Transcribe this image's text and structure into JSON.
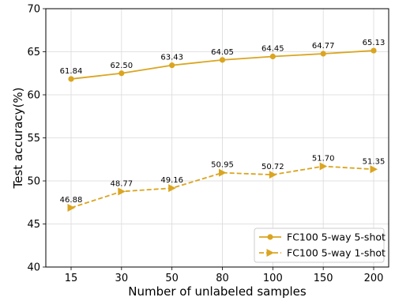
{
  "chart_data": {
    "type": "line",
    "xlabel": "Number of unlabeled samples",
    "ylabel": "Test accuracy(%)",
    "categories": [
      "15",
      "30",
      "50",
      "80",
      "100",
      "150",
      "200"
    ],
    "ylim": [
      40,
      70
    ],
    "yticks": [
      "40",
      "45",
      "50",
      "55",
      "60",
      "65",
      "70"
    ],
    "grid": true,
    "legend_position": "bottom-right",
    "series": [
      {
        "name": "FC100 5-way 5-shot",
        "values": [
          61.84,
          62.5,
          63.43,
          64.05,
          64.45,
          64.77,
          65.13
        ],
        "labels": [
          "61.84",
          "62.50",
          "63.43",
          "64.05",
          "64.45",
          "64.77",
          "65.13"
        ],
        "color": "#DAA520",
        "line_style": "solid",
        "marker": "circle"
      },
      {
        "name": "FC100 5-way 1-shot",
        "values": [
          46.88,
          48.77,
          49.16,
          50.95,
          50.72,
          51.7,
          51.35
        ],
        "labels": [
          "46.88",
          "48.77",
          "49.16",
          "50.95",
          "50.72",
          "51.70",
          "51.35"
        ],
        "color": "#DAA520",
        "line_style": "dashed",
        "marker": "triangle-right"
      }
    ]
  }
}
